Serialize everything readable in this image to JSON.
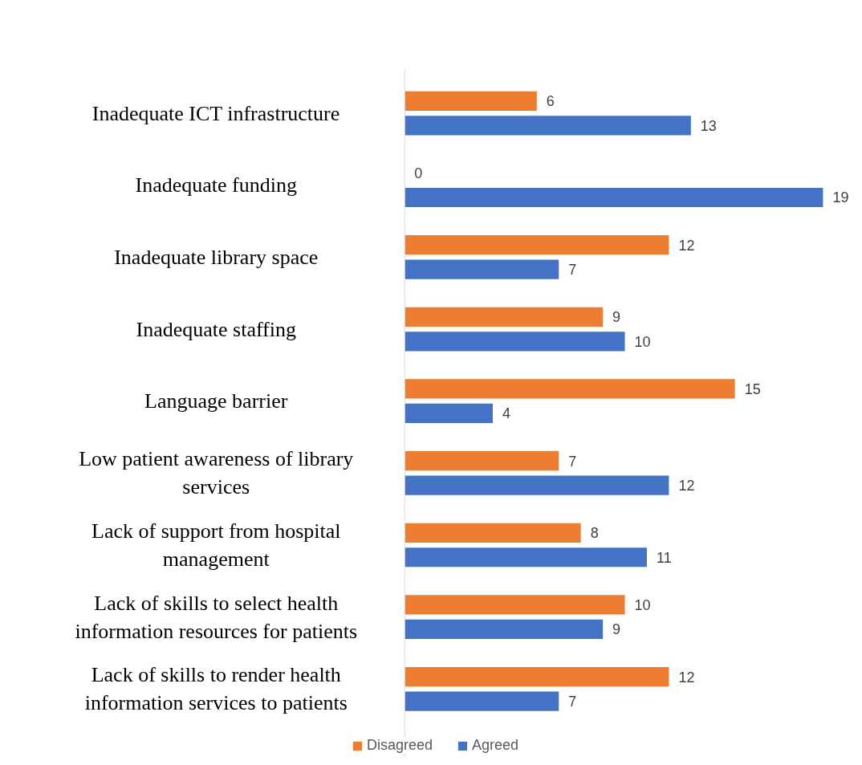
{
  "chart_data": {
    "type": "bar",
    "orientation": "horizontal",
    "categories": [
      "Inadequate ICT infrastructure",
      "Inadequate funding",
      "Inadequate library space",
      "Inadequate staffing",
      "Language barrier",
      "Low patient awareness of library services",
      "Lack of support from hospital management",
      "Lack of skills to select health information resources for patients",
      "Lack of skills to render health information services to patients"
    ],
    "series": [
      {
        "name": "Disagreed",
        "color": "#ed7d31",
        "values": [
          6,
          0,
          12,
          9,
          15,
          7,
          8,
          10,
          12
        ]
      },
      {
        "name": "Agreed",
        "color": "#4472c4",
        "values": [
          13,
          19,
          7,
          10,
          4,
          12,
          11,
          9,
          7
        ]
      }
    ],
    "data_labels": true,
    "legend": "bottom"
  }
}
